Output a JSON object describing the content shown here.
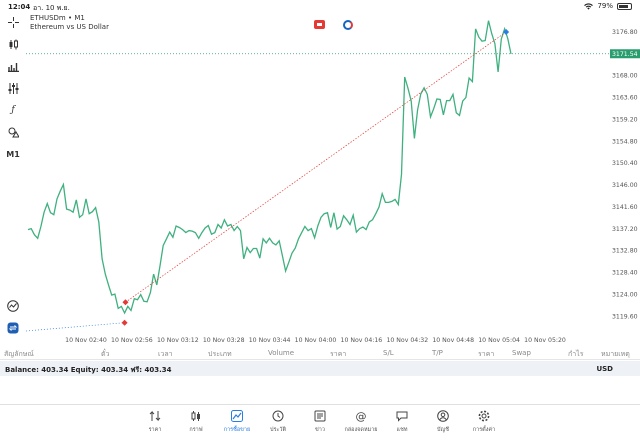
{
  "status_bar": {
    "time": "12:04",
    "date": "อา. 10 พ.ย.",
    "battery": "79%"
  },
  "chart": {
    "symbol": "ETHUSDm • M1",
    "description": "Ethereum vs US Dollar",
    "current_price_label": "3171.54",
    "price_ticks": [
      "3176.80",
      "3172.60",
      "3168.00",
      "3163.60",
      "3159.20",
      "3154.80",
      "3150.40",
      "3146.00",
      "3141.60",
      "3137.20",
      "3132.80",
      "3128.40",
      "3124.00",
      "3119.60"
    ],
    "time_ticks": [
      "10 Nov 02:40",
      "10 Nov 02:56",
      "10 Nov 03:12",
      "10 Nov 03:28",
      "10 Nov 03:44",
      "10 Nov 04:00",
      "10 Nov 04:16",
      "10 Nov 04:32",
      "10 Nov 04:48",
      "10 Nov 05:04",
      "10 Nov 05:20"
    ],
    "colors": {
      "line": "#3fb07f",
      "trade_line": "#e53935",
      "price_line": "#2a9d6e",
      "sl_line": "#2a7de1"
    }
  },
  "chart_data": {
    "type": "line",
    "series": [
      {
        "values": [
          3137.2,
          3137.4,
          3136.2,
          3135.5,
          3137.8,
          3140.6,
          3142.3,
          3140.5,
          3140.1,
          3143.2,
          3144.7,
          3146.0,
          3141.2,
          3141.0,
          3140.6,
          3143.0,
          3139.6,
          3140.1,
          3143.2,
          3140.3,
          3140.7,
          3141.5,
          3138.7,
          3131.5,
          3128.5,
          3126.4,
          3124.4,
          3124.6,
          3121.8,
          3122.2,
          3120.9,
          3122.2,
          3121.4,
          3123.7,
          3123.5,
          3124.5,
          3123.2,
          3123.1,
          3124.9,
          3128.5,
          3126.4,
          3130.1,
          3134.1,
          3135.4,
          3136.7,
          3135.7,
          3137.9,
          3137.6,
          3137.2,
          3136.6,
          3137.0,
          3136.9,
          3136.6,
          3135.5,
          3136.6,
          3137.5,
          3138.0,
          3136.3,
          3136.6,
          3138.2,
          3137.5,
          3139.1,
          3137.9,
          3138.2,
          3137.0,
          3137.8,
          3137.0,
          3131.5,
          3133.7,
          3132.7,
          3133.5,
          3133.5,
          3131.6,
          3135.4,
          3134.6,
          3135.5,
          3134.6,
          3134.2,
          3135.0,
          3132.1,
          3129.1,
          3130.8,
          3132.6,
          3133.6,
          3135.4,
          3136.6,
          3137.8,
          3137.0,
          3137.4,
          3135.6,
          3137.9,
          3139.6,
          3140.3,
          3140.5,
          3137.6,
          3140.5,
          3137.3,
          3137.8,
          3139.9,
          3139.1,
          3138.2,
          3140.0,
          3136.7,
          3137.4,
          3137.7,
          3137.2,
          3138.7,
          3139.1,
          3140.3,
          3141.6,
          3144.2,
          3142.5,
          3142.5,
          3142.7,
          3143.1,
          3142.1,
          3148.0,
          3167.0,
          3164.8,
          3162.3,
          3155.0,
          3160.6,
          3163.7,
          3164.9,
          3163.6,
          3159.2,
          3160.8,
          3162.7,
          3162.6,
          3159.6,
          3162.4,
          3162.4,
          3163.6,
          3160.0,
          3159.5,
          3162.3,
          3163.0,
          3166.8,
          3166.1,
          3176.4,
          3174.8,
          3174.0,
          3174.1,
          3178.0,
          3175.5,
          3173.5,
          3168.0,
          3174.4,
          3176.4,
          3174.5,
          3171.5
        ],
        "x_start": "10 Nov 02:34",
        "interval": "1 min"
      }
    ],
    "ylim": [
      3117.0,
      3179.5
    ],
    "current_price": 3171.54,
    "trade": {
      "entry_price": 3123.0,
      "exit_price": 3175.8
    },
    "lower_level": 3119.6
  },
  "tools": [
    "crosshair-tool",
    "candles-tool",
    "bars-tool",
    "indicators-tool",
    "function-tool",
    "objects-tool",
    "timeframe-tool",
    "stats-tool",
    "trade-tool"
  ],
  "tool_labels": {
    "timeframe": "M1"
  },
  "columns": {
    "symbol": "สัญลักษณ์",
    "ticket": "ตั๋ว",
    "time": "เวลา",
    "type": "ประเภท",
    "volume": "Volume",
    "price": "ราคา",
    "sl": "S/L",
    "tp": "T/P",
    "price2": "ราคา",
    "swap": "Swap",
    "profit": "กำไร",
    "comment": "หมายเหตุ"
  },
  "balance": {
    "text": "Balance: 403.34  Equity: 403.34  ฟรี: 403.34",
    "currency": "USD"
  },
  "nav": [
    {
      "label": "ราคา",
      "icon": "quotes-icon"
    },
    {
      "label": "กราฟ",
      "icon": "chart-icon"
    },
    {
      "label": "การซื้อขาย",
      "icon": "trade-icon"
    },
    {
      "label": "ประวัติ",
      "icon": "history-icon"
    },
    {
      "label": "ข่าว",
      "icon": "news-icon"
    },
    {
      "label": "กล่องจดหมาย",
      "icon": "mailbox-icon"
    },
    {
      "label": "แชท",
      "icon": "chat-icon"
    },
    {
      "label": "บัญชี",
      "icon": "account-icon"
    },
    {
      "label": "การตั้งค่า",
      "icon": "settings-icon"
    }
  ]
}
